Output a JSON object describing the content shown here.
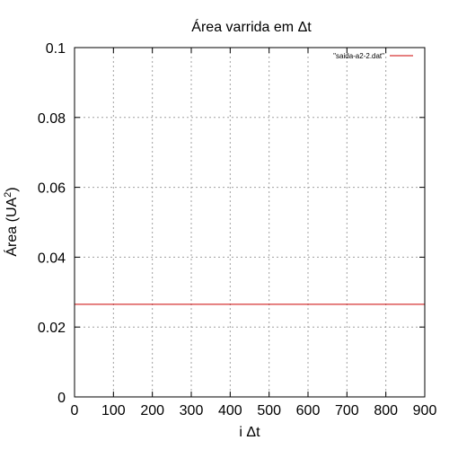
{
  "chart_data": {
    "type": "line",
    "title": "Área varrida em Δt",
    "xlabel": "i Δt",
    "ylabel_main": "Área (UA",
    "ylabel_sup": "2",
    "ylabel_tail": ")",
    "xlim": [
      0,
      900
    ],
    "ylim": [
      0,
      0.1
    ],
    "xticks": [
      0,
      100,
      200,
      300,
      400,
      500,
      600,
      700,
      800,
      900
    ],
    "xtick_labels": [
      "0",
      "100",
      "200",
      "300",
      "400",
      "500",
      "600",
      "700",
      "800",
      "900"
    ],
    "yticks": [
      0,
      0.02,
      0.04,
      0.06,
      0.08,
      0.1
    ],
    "ytick_labels": [
      "0",
      "0.02",
      "0.04",
      "0.06",
      "0.08",
      "0.1"
    ],
    "grid": true,
    "legend_position": "top-right",
    "series": [
      {
        "name": "\"saida-a2-2.dat\"",
        "color": "#cc0000",
        "x": [
          0,
          900
        ],
        "y": [
          0.0265,
          0.0265
        ]
      }
    ]
  }
}
